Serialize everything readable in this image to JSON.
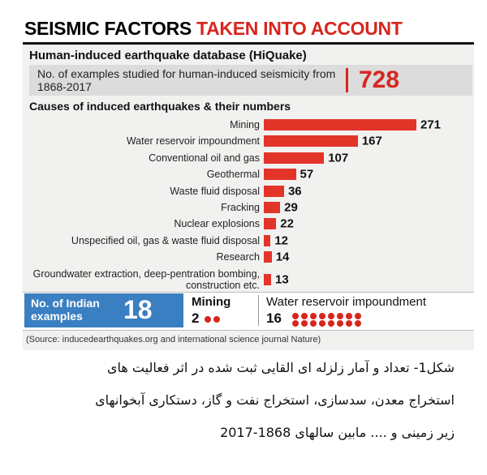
{
  "header": {
    "title_black": "SEISMIC FACTORS",
    "title_red": "TAKEN INTO ACCOUNT",
    "subtitle": "Human-induced earthquake database (HiQuake)"
  },
  "summary": {
    "label": "No. of examples studied for human-induced seismicity from 1868-2017",
    "value": 728
  },
  "chart_data": {
    "type": "bar",
    "orientation": "horizontal",
    "title": "Causes of induced earthquakes & their numbers",
    "color": "#e3342a",
    "categories": [
      "Mining",
      "Water reservoir impoundment",
      "Conventional oil and gas",
      "Geothermal",
      "Waste fluid disposal",
      "Fracking",
      "Nuclear explosions",
      "Unspecified oil, gas & waste fluid disposal",
      "Research",
      "Groundwater extraction, deep-pentration bombing, construction etc."
    ],
    "values": [
      271,
      167,
      107,
      57,
      36,
      29,
      22,
      12,
      14,
      13
    ]
  },
  "india": {
    "label": "No. of Indian examples",
    "value": 18,
    "dot_color": "#d7261e",
    "items": [
      {
        "name": "Mining",
        "value": 2
      },
      {
        "name": "Water reservoir impoundment",
        "value": 16
      }
    ]
  },
  "source": "(Source: inducedearthquakes.org and international science journal Nature)",
  "caption": [
    "شکل1- تعداد و آمار زلزله ای القایی ثبت شده در اثر فعالیت های",
    "استخراج معدن، سدسازی، استخراج نفت و گاز، دستکاری آبخوانهای",
    "زیر زمینی و .... مابین سالهای 1868-2017"
  ]
}
